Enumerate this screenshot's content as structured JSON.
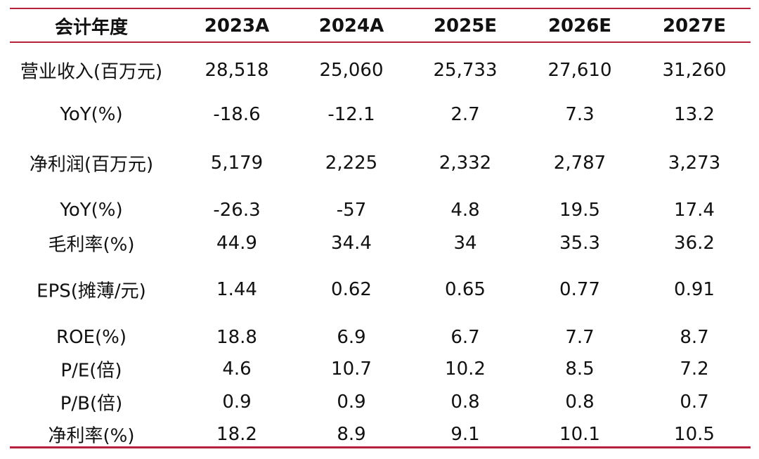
{
  "table": {
    "header": [
      "会计年度",
      "2023A",
      "2024A",
      "2025E",
      "2026E",
      "2027E"
    ],
    "rows": [
      [
        "营业收入(百万元)",
        "28,518",
        "25,060",
        "25,733",
        "27,610",
        "31,260"
      ],
      [
        "YoY(%)",
        "-18.6",
        "-12.1",
        "2.7",
        "7.3",
        "13.2"
      ],
      [
        "净利润(百万元)",
        "5,179",
        "2,225",
        "2,332",
        "2,787",
        "3,273"
      ],
      [
        "YoY(%)",
        "-26.3",
        "-57",
        "4.8",
        "19.5",
        "17.4"
      ],
      [
        "毛利率(%)",
        "44.9",
        "34.4",
        "34",
        "35.3",
        "36.2"
      ],
      [
        "EPS(摊薄/元)",
        "1.44",
        "0.62",
        "0.65",
        "0.77",
        "0.91"
      ],
      [
        "ROE(%)",
        "18.8",
        "6.9",
        "6.7",
        "7.7",
        "8.7"
      ],
      [
        "P/E(倍)",
        "4.6",
        "10.7",
        "10.2",
        "8.5",
        "7.2"
      ],
      [
        "P/B(倍)",
        "0.9",
        "0.9",
        "0.8",
        "0.8",
        "0.7"
      ],
      [
        "净利率(%)",
        "18.2",
        "8.9",
        "9.1",
        "10.1",
        "10.5"
      ]
    ]
  }
}
